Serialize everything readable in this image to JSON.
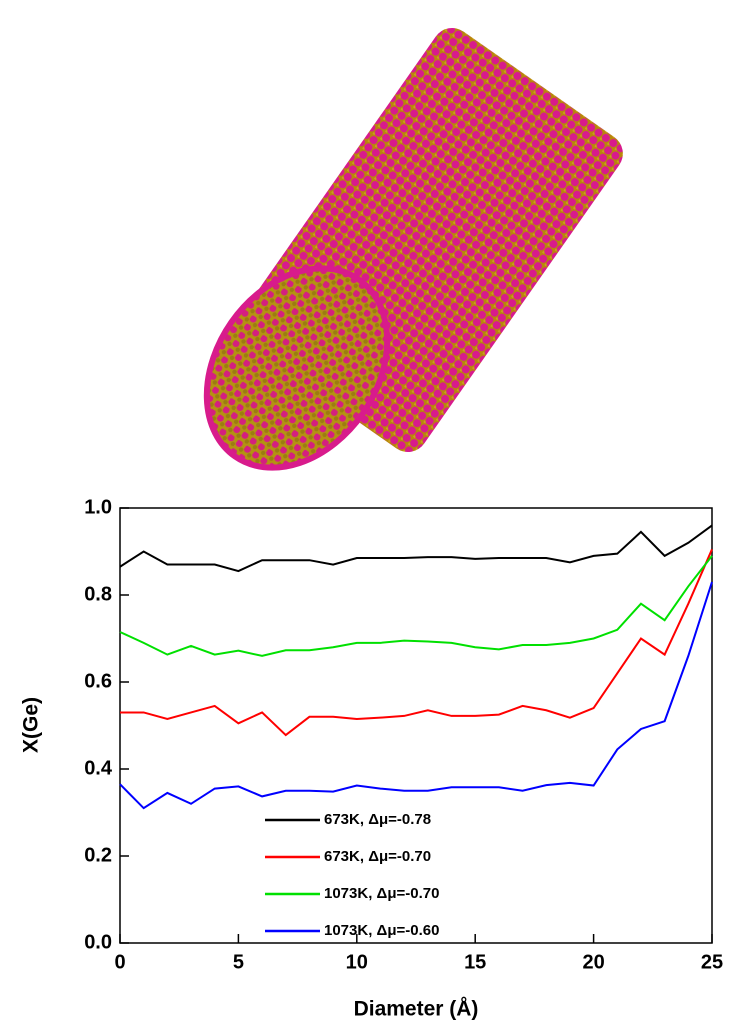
{
  "chart_data": {
    "type": "line",
    "x_label": "Diameter (Å)",
    "y_label": "X(Ge)",
    "x": [
      0,
      1,
      2,
      3,
      4,
      5,
      6,
      7,
      8,
      9,
      10,
      11,
      12,
      13,
      14,
      15,
      16,
      17,
      18,
      19,
      20,
      21,
      22,
      23,
      24,
      25
    ],
    "series": [
      {
        "name": "673K, Δμ=-0.78",
        "color": "#000000",
        "values": [
          0.865,
          0.9,
          0.87,
          0.87,
          0.87,
          0.855,
          0.88,
          0.88,
          0.88,
          0.87,
          0.885,
          0.885,
          0.885,
          0.887,
          0.887,
          0.883,
          0.885,
          0.885,
          0.885,
          0.875,
          0.89,
          0.895,
          0.945,
          0.89,
          0.92,
          0.96
        ]
      },
      {
        "name": "673K, Δμ=-0.70",
        "color": "#ff0000",
        "values": [
          0.53,
          0.53,
          0.515,
          0.53,
          0.545,
          0.505,
          0.53,
          0.478,
          0.52,
          0.52,
          0.515,
          0.518,
          0.522,
          0.535,
          0.522,
          0.522,
          0.525,
          0.545,
          0.535,
          0.518,
          0.54,
          0.62,
          0.7,
          0.663,
          0.78,
          0.905
        ]
      },
      {
        "name": "1073K, Δμ=-0.70",
        "color": "#00e000",
        "values": [
          0.715,
          0.69,
          0.663,
          0.683,
          0.663,
          0.672,
          0.66,
          0.673,
          0.673,
          0.68,
          0.69,
          0.69,
          0.695,
          0.693,
          0.69,
          0.68,
          0.675,
          0.685,
          0.685,
          0.69,
          0.7,
          0.72,
          0.78,
          0.742,
          0.82,
          0.89
        ]
      },
      {
        "name": "1073K, Δμ=-0.60",
        "color": "#0000ff",
        "values": [
          0.365,
          0.31,
          0.345,
          0.32,
          0.355,
          0.36,
          0.337,
          0.35,
          0.35,
          0.348,
          0.362,
          0.355,
          0.35,
          0.35,
          0.358,
          0.358,
          0.358,
          0.35,
          0.363,
          0.368,
          0.362,
          0.445,
          0.492,
          0.51,
          0.66,
          0.83
        ]
      }
    ],
    "xlim": [
      0,
      25
    ],
    "xticks": [
      0,
      5,
      10,
      15,
      20,
      25
    ],
    "ylim": [
      0,
      1
    ],
    "yticks": [
      {
        "value": 0,
        "label": "0.0"
      },
      0.2,
      0.4,
      0.6,
      0.8,
      {
        "value": 1,
        "label": "1.0"
      }
    ]
  }
}
